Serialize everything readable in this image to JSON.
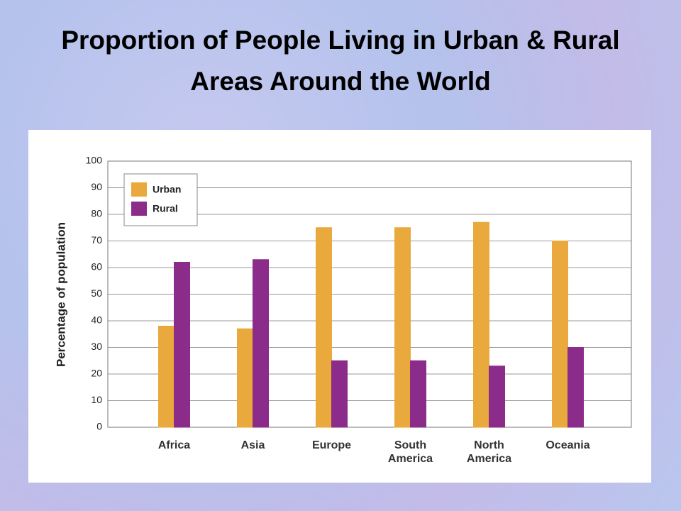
{
  "chart_data": {
    "type": "bar",
    "title": "Proportion of People Living in Urban & Rural Areas Around the World",
    "y_label": "Percentage of population",
    "categories": [
      "Africa",
      "Asia",
      "Europe",
      "South America",
      "North America",
      "Oceania"
    ],
    "series": [
      {
        "name": "Urban",
        "color": "#e9a93c",
        "values": [
          38,
          37,
          75,
          75,
          77,
          70
        ]
      },
      {
        "name": "Rural",
        "color": "#8c2c8a",
        "values": [
          62,
          63,
          25,
          25,
          23,
          30
        ]
      }
    ],
    "ylim": [
      0,
      100
    ],
    "yticks": [
      0,
      10,
      20,
      30,
      40,
      50,
      60,
      70,
      80,
      90,
      100
    ],
    "grid": true,
    "legend": "upper left"
  }
}
